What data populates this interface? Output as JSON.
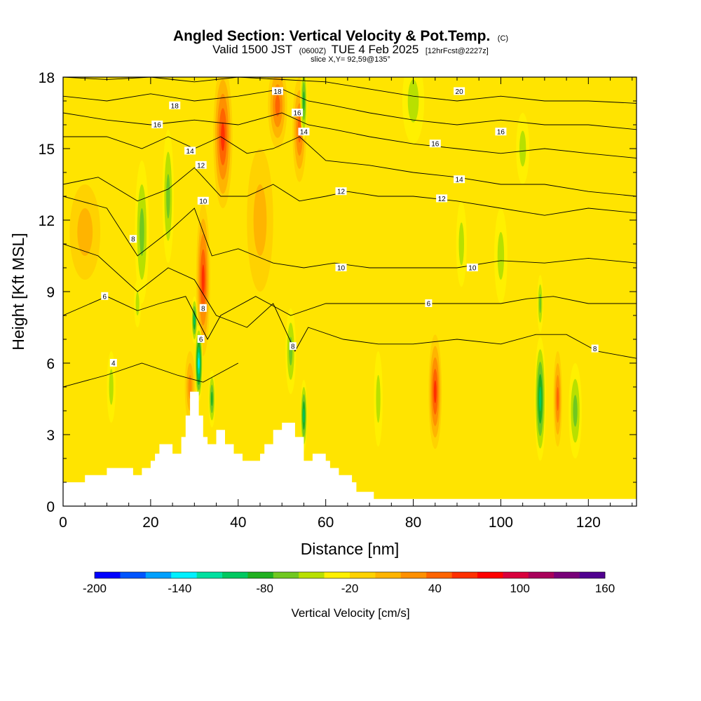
{
  "chart_data": {
    "type": "heatmap",
    "title": "Angled Section: Vertical Velocity & Pot.Temp.",
    "title_unit": "(C)",
    "subtitle": {
      "valid": "Valid 1500 JST",
      "utc": "(0600Z)",
      "date": "TUE 4 Feb 2025",
      "forecast": "[12hrFcst@2227z]"
    },
    "slice_label": "slice X,Y= 92,59@135°",
    "xlabel": "Distance [nm]",
    "ylabel": "Height [Kft MSL]",
    "xlim": [
      0,
      131
    ],
    "ylim": [
      0,
      18
    ],
    "x_ticks": [
      0,
      20,
      40,
      60,
      80,
      100,
      120
    ],
    "y_ticks": [
      0,
      3,
      6,
      9,
      12,
      15,
      18
    ],
    "colorbar": {
      "title": "Vertical Velocity [cm/s]",
      "min": -200,
      "max": 160,
      "step": 20,
      "tick_labels": [
        -200,
        -140,
        -80,
        -20,
        40,
        100,
        160
      ],
      "colors": [
        "#0000ff",
        "#0055ff",
        "#00a0ff",
        "#00f0ff",
        "#00e0a0",
        "#00c860",
        "#20b020",
        "#70c820",
        "#b8e000",
        "#fff000",
        "#ffd200",
        "#ffb400",
        "#ff9000",
        "#ff6400",
        "#ff3000",
        "#ff0000",
        "#d8003c",
        "#a8005a",
        "#780078",
        "#500090"
      ]
    },
    "terrain": [
      [
        0,
        1
      ],
      [
        5,
        1
      ],
      [
        5,
        1.3
      ],
      [
        10,
        1.3
      ],
      [
        10,
        1.6
      ],
      [
        16,
        1.6
      ],
      [
        16,
        1.3
      ],
      [
        18,
        1.3
      ],
      [
        18,
        1.6
      ],
      [
        20,
        1.6
      ],
      [
        20,
        1.9
      ],
      [
        21,
        1.9
      ],
      [
        21,
        2.2
      ],
      [
        22,
        2.2
      ],
      [
        22,
        2.6
      ],
      [
        25,
        2.6
      ],
      [
        25,
        2.2
      ],
      [
        27,
        2.2
      ],
      [
        27,
        2.9
      ],
      [
        28,
        2.9
      ],
      [
        28,
        3.8
      ],
      [
        29,
        3.8
      ],
      [
        29,
        4.8
      ],
      [
        31,
        4.8
      ],
      [
        31,
        3.8
      ],
      [
        32,
        3.8
      ],
      [
        32,
        2.9
      ],
      [
        33,
        2.9
      ],
      [
        33,
        2.6
      ],
      [
        35,
        2.6
      ],
      [
        35,
        3.2
      ],
      [
        37,
        3.2
      ],
      [
        37,
        2.6
      ],
      [
        39,
        2.6
      ],
      [
        39,
        2.2
      ],
      [
        41,
        2.2
      ],
      [
        41,
        1.9
      ],
      [
        45,
        1.9
      ],
      [
        45,
        2.2
      ],
      [
        46,
        2.2
      ],
      [
        46,
        2.6
      ],
      [
        48,
        2.6
      ],
      [
        48,
        3.2
      ],
      [
        50,
        3.2
      ],
      [
        50,
        3.5
      ],
      [
        53,
        3.5
      ],
      [
        53,
        2.9
      ],
      [
        55,
        2.9
      ],
      [
        55,
        1.9
      ],
      [
        57,
        1.9
      ],
      [
        57,
        2.2
      ],
      [
        60,
        2.2
      ],
      [
        60,
        1.9
      ],
      [
        61,
        1.9
      ],
      [
        61,
        1.6
      ],
      [
        63,
        1.6
      ],
      [
        63,
        1.3
      ],
      [
        66,
        1.3
      ],
      [
        66,
        1
      ],
      [
        67,
        1
      ],
      [
        67,
        0.6
      ],
      [
        71,
        0.6
      ],
      [
        71,
        0.3
      ],
      [
        131,
        0.3
      ]
    ],
    "updrafts": [
      {
        "x": 32,
        "y": 9.5,
        "rx": 1.6,
        "ry": 3.2,
        "w": 95
      },
      {
        "x": 36.5,
        "y": 15.5,
        "rx": 2.2,
        "ry": 3.0,
        "w": 90
      },
      {
        "x": 49,
        "y": 16.8,
        "rx": 2.2,
        "ry": 1.8,
        "w": 75
      },
      {
        "x": 54,
        "y": 15.8,
        "rx": 1.6,
        "ry": 2.2,
        "w": 70
      },
      {
        "x": 85,
        "y": 4.8,
        "rx": 1.5,
        "ry": 2.4,
        "w": 90
      },
      {
        "x": 113,
        "y": 4.5,
        "rx": 1.0,
        "ry": 2.0,
        "w": 80
      },
      {
        "x": 29,
        "y": 5.0,
        "rx": 1.2,
        "ry": 1.5,
        "w": 60
      },
      {
        "x": 5,
        "y": 11.5,
        "rx": 3.5,
        "ry": 2.0,
        "w": 35
      },
      {
        "x": 45,
        "y": 12,
        "rx": 3.0,
        "ry": 3.0,
        "w": 40
      }
    ],
    "downdrafts": [
      {
        "x": 31,
        "y": 6.0,
        "rx": 0.9,
        "ry": 1.6,
        "w": -125
      },
      {
        "x": 30,
        "y": 7.8,
        "rx": 0.7,
        "ry": 1.0,
        "w": -100
      },
      {
        "x": 34,
        "y": 4.5,
        "rx": 0.8,
        "ry": 1.2,
        "w": -80
      },
      {
        "x": 55,
        "y": 3.8,
        "rx": 0.8,
        "ry": 1.5,
        "w": -95
      },
      {
        "x": 52,
        "y": 6.5,
        "rx": 1.2,
        "ry": 1.8,
        "w": -60
      },
      {
        "x": 18,
        "y": 11.5,
        "rx": 1.6,
        "ry": 3.0,
        "w": -45
      },
      {
        "x": 24,
        "y": 13.0,
        "rx": 1.3,
        "ry": 2.8,
        "w": -55
      },
      {
        "x": 17,
        "y": 8.5,
        "rx": 0.8,
        "ry": 1.0,
        "w": -40
      },
      {
        "x": 11,
        "y": 5.0,
        "rx": 1.0,
        "ry": 1.5,
        "w": -35
      },
      {
        "x": 55,
        "y": 17.0,
        "rx": 0.8,
        "ry": 1.6,
        "w": -70
      },
      {
        "x": 109,
        "y": 4.5,
        "rx": 1.3,
        "ry": 2.6,
        "w": -85
      },
      {
        "x": 109,
        "y": 8.5,
        "rx": 0.7,
        "ry": 1.2,
        "w": -60
      },
      {
        "x": 117,
        "y": 4.0,
        "rx": 1.5,
        "ry": 2.0,
        "w": -55
      },
      {
        "x": 80,
        "y": 17.0,
        "rx": 2.5,
        "ry": 1.8,
        "w": -35
      },
      {
        "x": 100,
        "y": 10.5,
        "rx": 1.5,
        "ry": 2.0,
        "w": -30
      },
      {
        "x": 105,
        "y": 15,
        "rx": 1.5,
        "ry": 1.5,
        "w": -30
      },
      {
        "x": 72,
        "y": 4.5,
        "rx": 1.0,
        "ry": 2.0,
        "w": -25
      },
      {
        "x": 91,
        "y": 11.0,
        "rx": 1.2,
        "ry": 1.8,
        "w": -25
      }
    ],
    "contours": [
      {
        "level": 4,
        "label": "4",
        "points": [
          [
            0,
            5.0
          ],
          [
            10,
            5.5
          ],
          [
            18,
            6.0
          ],
          [
            26,
            5.5
          ],
          [
            32,
            5.2
          ],
          [
            40,
            6.0
          ]
        ]
      },
      {
        "level": 6,
        "label": "6",
        "points": [
          [
            0,
            8.0
          ],
          [
            10,
            8.8
          ],
          [
            17,
            8.2
          ],
          [
            22,
            8.5
          ],
          [
            28,
            8.8
          ],
          [
            33,
            7.0
          ],
          [
            36,
            8.0
          ],
          [
            44,
            8.8
          ],
          [
            52,
            8.0
          ],
          [
            60,
            8.5
          ],
          [
            70,
            8.5
          ],
          [
            80,
            8.5
          ],
          [
            90,
            8.5
          ],
          [
            100,
            8.5
          ],
          [
            106,
            8.7
          ],
          [
            112,
            8.8
          ],
          [
            120,
            8.5
          ],
          [
            131,
            8.5
          ]
        ]
      },
      {
        "level": 8,
        "label": "8",
        "points": [
          [
            0,
            11.0
          ],
          [
            8,
            10.5
          ],
          [
            17,
            9.0
          ],
          [
            24,
            10.0
          ],
          [
            30,
            9.5
          ],
          [
            35,
            8.0
          ],
          [
            42,
            7.5
          ],
          [
            48,
            8.5
          ],
          [
            53,
            6.5
          ],
          [
            56,
            7.5
          ],
          [
            64,
            7.0
          ],
          [
            72,
            6.8
          ],
          [
            80,
            6.8
          ],
          [
            90,
            7.0
          ],
          [
            100,
            6.8
          ],
          [
            108,
            7.2
          ],
          [
            115,
            7.2
          ],
          [
            122,
            6.5
          ],
          [
            131,
            6.2
          ]
        ]
      },
      {
        "level": 10,
        "label": "10",
        "points": [
          [
            0,
            13.0
          ],
          [
            10,
            12.5
          ],
          [
            17,
            10.5
          ],
          [
            24,
            11.5
          ],
          [
            30,
            12.5
          ],
          [
            34,
            10.5
          ],
          [
            40,
            10.8
          ],
          [
            48,
            10.2
          ],
          [
            55,
            10.0
          ],
          [
            62,
            10.2
          ],
          [
            70,
            10.0
          ],
          [
            80,
            10.0
          ],
          [
            90,
            10.0
          ],
          [
            100,
            10.3
          ],
          [
            110,
            10.2
          ],
          [
            120,
            10.4
          ],
          [
            131,
            10.2
          ]
        ]
      },
      {
        "level": 12,
        "label": "12",
        "points": [
          [
            0,
            13.5
          ],
          [
            8,
            13.8
          ],
          [
            17,
            12.8
          ],
          [
            24,
            13.3
          ],
          [
            30,
            14.2
          ],
          [
            36,
            13.0
          ],
          [
            42,
            13.0
          ],
          [
            48,
            13.5
          ],
          [
            54,
            12.8
          ],
          [
            60,
            13.0
          ],
          [
            65,
            13.2
          ],
          [
            72,
            13.0
          ],
          [
            80,
            13.0
          ],
          [
            90,
            12.8
          ],
          [
            100,
            12.5
          ],
          [
            110,
            12.2
          ],
          [
            120,
            12.5
          ],
          [
            131,
            12.3
          ]
        ]
      },
      {
        "level": 14,
        "label": "14",
        "points": [
          [
            0,
            15.5
          ],
          [
            10,
            15.5
          ],
          [
            18,
            15.0
          ],
          [
            24,
            15.5
          ],
          [
            30,
            15.0
          ],
          [
            36,
            15.5
          ],
          [
            42,
            14.8
          ],
          [
            48,
            15.0
          ],
          [
            54,
            15.5
          ],
          [
            60,
            14.5
          ],
          [
            70,
            14.3
          ],
          [
            80,
            14.0
          ],
          [
            90,
            13.8
          ],
          [
            100,
            13.5
          ],
          [
            110,
            13.5
          ],
          [
            120,
            13.2
          ],
          [
            131,
            13.0
          ]
        ]
      },
      {
        "level": 16,
        "label": "16",
        "points": [
          [
            0,
            16.5
          ],
          [
            10,
            16.2
          ],
          [
            20,
            16.0
          ],
          [
            30,
            16.2
          ],
          [
            40,
            16.0
          ],
          [
            50,
            16.5
          ],
          [
            56,
            16.0
          ],
          [
            62,
            15.8
          ],
          [
            70,
            15.5
          ],
          [
            80,
            15.2
          ],
          [
            90,
            15.0
          ],
          [
            100,
            14.8
          ],
          [
            110,
            15.0
          ],
          [
            120,
            14.8
          ],
          [
            131,
            14.6
          ]
        ]
      },
      {
        "level": 18,
        "label": "18",
        "points": [
          [
            0,
            17.2
          ],
          [
            10,
            17.0
          ],
          [
            20,
            17.3
          ],
          [
            30,
            17.0
          ],
          [
            40,
            17.2
          ],
          [
            50,
            17.5
          ],
          [
            56,
            17.0
          ],
          [
            62,
            16.8
          ],
          [
            70,
            16.5
          ],
          [
            80,
            16.2
          ],
          [
            90,
            16.0
          ],
          [
            100,
            16.2
          ],
          [
            110,
            16.0
          ],
          [
            120,
            16.0
          ],
          [
            131,
            15.8
          ]
        ]
      },
      {
        "level": 20,
        "label": "20",
        "points": [
          [
            0,
            18.0
          ],
          [
            10,
            17.9
          ],
          [
            20,
            18.0
          ],
          [
            30,
            17.8
          ],
          [
            40,
            18.0
          ],
          [
            60,
            17.8
          ],
          [
            80,
            17.2
          ],
          [
            90,
            17.0
          ],
          [
            100,
            17.2
          ],
          [
            110,
            17.0
          ],
          [
            120,
            17.0
          ],
          [
            131,
            16.9
          ]
        ]
      }
    ],
    "contour_labels": [
      {
        "text": "4",
        "x": 11.5,
        "y": 6.0
      },
      {
        "text": "6",
        "x": 9.5,
        "y": 8.8
      },
      {
        "text": "6",
        "x": 31.5,
        "y": 7.0
      },
      {
        "text": "6",
        "x": 83.5,
        "y": 8.5
      },
      {
        "text": "8",
        "x": 16.0,
        "y": 11.2
      },
      {
        "text": "8",
        "x": 32.0,
        "y": 8.3
      },
      {
        "text": "8",
        "x": 52.5,
        "y": 6.7
      },
      {
        "text": "8",
        "x": 121.5,
        "y": 6.6
      },
      {
        "text": "10",
        "x": 32.0,
        "y": 12.8
      },
      {
        "text": "10",
        "x": 63.5,
        "y": 10.0
      },
      {
        "text": "10",
        "x": 93.5,
        "y": 10.0
      },
      {
        "text": "12",
        "x": 31.5,
        "y": 14.3
      },
      {
        "text": "12",
        "x": 63.5,
        "y": 13.2
      },
      {
        "text": "12",
        "x": 86.5,
        "y": 12.9
      },
      {
        "text": "14",
        "x": 29.0,
        "y": 14.9
      },
      {
        "text": "14",
        "x": 55.0,
        "y": 15.7
      },
      {
        "text": "14",
        "x": 90.5,
        "y": 13.7
      },
      {
        "text": "16",
        "x": 21.5,
        "y": 16.0
      },
      {
        "text": "16",
        "x": 53.5,
        "y": 16.5
      },
      {
        "text": "16",
        "x": 85.0,
        "y": 15.2
      },
      {
        "text": "16",
        "x": 100.0,
        "y": 15.7
      },
      {
        "text": "18",
        "x": 25.5,
        "y": 16.8
      },
      {
        "text": "18",
        "x": 49.0,
        "y": 17.4
      },
      {
        "text": "20",
        "x": 90.5,
        "y": 17.4
      }
    ]
  }
}
